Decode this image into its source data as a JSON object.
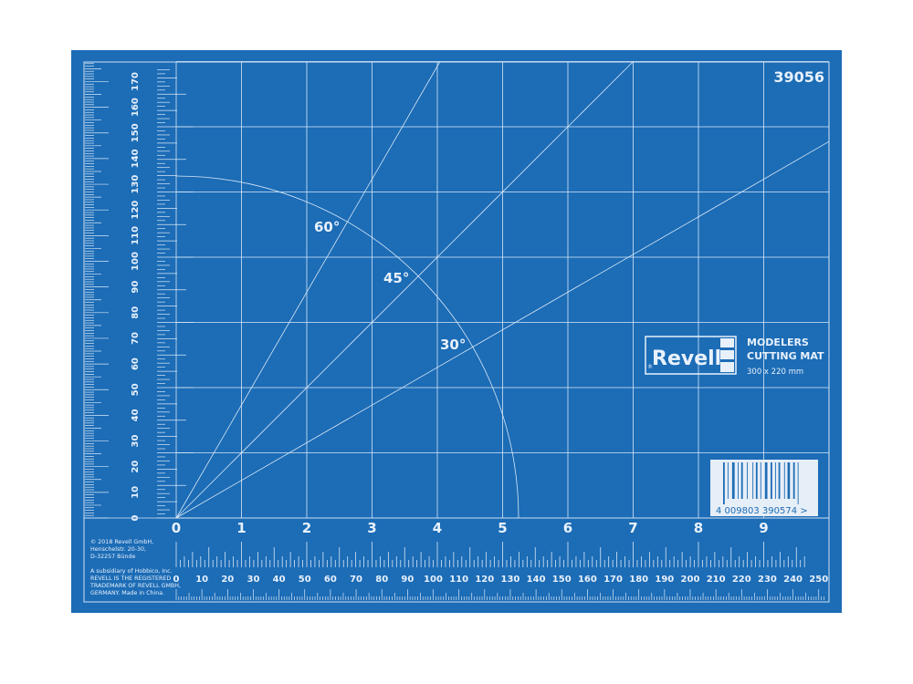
{
  "product_number": "39056",
  "angles": [
    "60°",
    "45°",
    "30°"
  ],
  "inch_labels": [
    "0",
    "1",
    "2",
    "3",
    "4",
    "5",
    "6",
    "7",
    "8",
    "9"
  ],
  "mm_labels": [
    "0",
    "10",
    "20",
    "30",
    "40",
    "50",
    "60",
    "70",
    "80",
    "90",
    "100",
    "110",
    "120",
    "130",
    "140",
    "150",
    "160",
    "170",
    "180",
    "190",
    "200",
    "210",
    "220",
    "230",
    "240",
    "250"
  ],
  "vertical_mm_labels": [
    "0",
    "10",
    "20",
    "30",
    "40",
    "50",
    "60",
    "70",
    "80",
    "90",
    "100",
    "110",
    "120",
    "130",
    "140",
    "150",
    "160",
    "170"
  ],
  "logo": {
    "brand": "Revell",
    "registered": "®"
  },
  "title_line1": "MODELERS",
  "title_line2": "CUTTING MAT",
  "size": "300 x 220 mm",
  "barcode_number": "4 009803 390574 >",
  "copyright": [
    "© 2018 Revell GmbH,",
    "Henschelstr. 20-30,",
    "D-32257 Bünde"
  ],
  "legal": [
    "A subsidiary of Hobbico, Inc.",
    "REVELL IS THE REGISTERED",
    "TRADEMARK OF REVELL GMBH,",
    "GERMANY. Made in China."
  ],
  "colors": {
    "mat": "#1c6cb6",
    "lines": "#d9e8f7"
  }
}
